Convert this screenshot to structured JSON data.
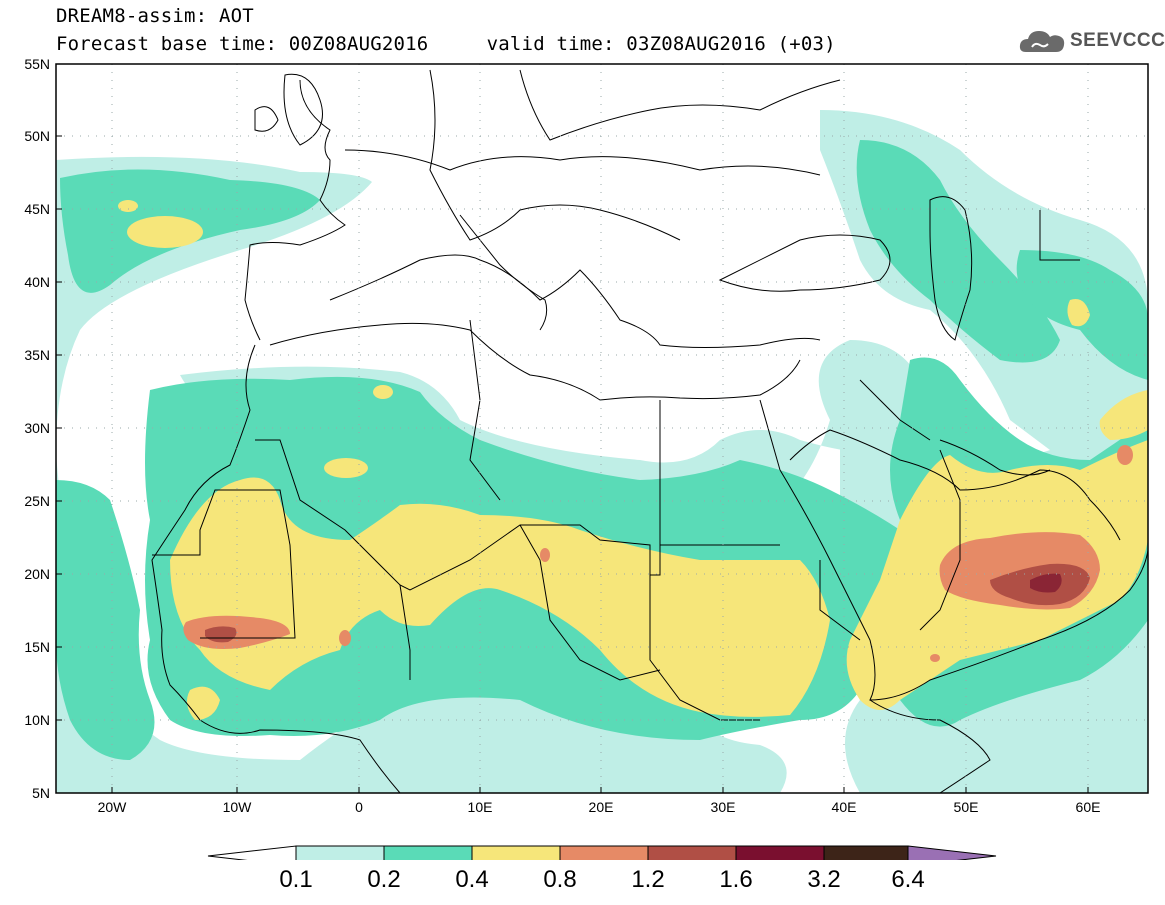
{
  "title": {
    "line1": "DREAM8-assim: AOT",
    "line2": "Forecast base time: 00Z08AUG2016     valid time: 03Z08AUG2016 (+03)"
  },
  "logo": {
    "text": "SEEVCCC",
    "icon": "cloud-icon"
  },
  "map": {
    "lon_range": [
      -25,
      65
    ],
    "lat_range": [
      5,
      55
    ],
    "y_ticks": [
      "5N",
      "10N",
      "15N",
      "20N",
      "25N",
      "30N",
      "35N",
      "40N",
      "45N",
      "50N",
      "55N"
    ],
    "x_ticks": [
      "20W",
      "10W",
      "0",
      "10E",
      "20E",
      "30E",
      "40E",
      "50E",
      "60E"
    ]
  },
  "legend": {
    "labels": [
      "0.1",
      "0.2",
      "0.4",
      "0.8",
      "1.2",
      "1.6",
      "3.2",
      "6.4"
    ],
    "colors": [
      "#bfeee6",
      "#5adbb7",
      "#f6e67a",
      "#e68a66",
      "#b04f45",
      "#7a0f2f",
      "#3d2418",
      "#9a70b4"
    ]
  }
}
